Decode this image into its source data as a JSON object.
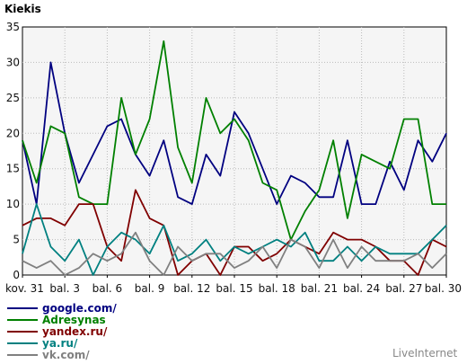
{
  "chart_data": {
    "type": "line",
    "title": "Kiekis",
    "credit": "LiveInternet",
    "ylim": [
      0,
      35
    ],
    "yticks": [
      0,
      5,
      10,
      15,
      20,
      25,
      30,
      35
    ],
    "x_tick_labels": [
      "kov. 31",
      "bal. 3",
      "bal. 6",
      "bal. 9",
      "bal. 12",
      "bal. 15",
      "bal. 18",
      "bal. 21",
      "bal. 24",
      "bal. 27",
      "bal. 30"
    ],
    "x_count": 31,
    "grid": true,
    "legend_position": "bottom-left",
    "series": [
      {
        "name": "google.com/",
        "color": "#000080",
        "values": [
          19,
          10,
          30,
          20,
          13,
          17,
          21,
          22,
          17,
          14,
          19,
          11,
          10,
          17,
          14,
          23,
          20,
          15,
          10,
          14,
          13,
          11,
          11,
          19,
          10,
          10,
          16,
          12,
          19,
          16,
          20
        ]
      },
      {
        "name": "Adresynas",
        "color": "#008000",
        "values": [
          19,
          13,
          21,
          20,
          11,
          10,
          10,
          25,
          17,
          22,
          33,
          18,
          13,
          25,
          20,
          22,
          19,
          13,
          12,
          5,
          9,
          12,
          19,
          8,
          17,
          16,
          15,
          22,
          22,
          10,
          10
        ]
      },
      {
        "name": "yandex.ru/",
        "color": "#800000",
        "values": [
          7,
          8,
          8,
          7,
          10,
          10,
          4,
          2,
          12,
          8,
          7,
          0,
          2,
          3,
          0,
          4,
          4,
          2,
          3,
          5,
          4,
          3,
          6,
          5,
          5,
          4,
          2,
          2,
          0,
          5,
          4
        ]
      },
      {
        "name": "ya.ru/",
        "color": "#008080",
        "values": [
          3,
          10,
          4,
          2,
          5,
          0,
          4,
          6,
          5,
          3,
          7,
          2,
          3,
          5,
          2,
          4,
          3,
          4,
          5,
          4,
          6,
          2,
          2,
          4,
          2,
          4,
          3,
          3,
          3,
          5,
          7
        ]
      },
      {
        "name": "vk.com/",
        "color": "#808080",
        "values": [
          2,
          1,
          2,
          0,
          1,
          3,
          2,
          3,
          6,
          2,
          0,
          4,
          2,
          3,
          3,
          1,
          2,
          4,
          1,
          5,
          4,
          1,
          5,
          1,
          4,
          2,
          2,
          2,
          3,
          1,
          3
        ]
      }
    ]
  }
}
